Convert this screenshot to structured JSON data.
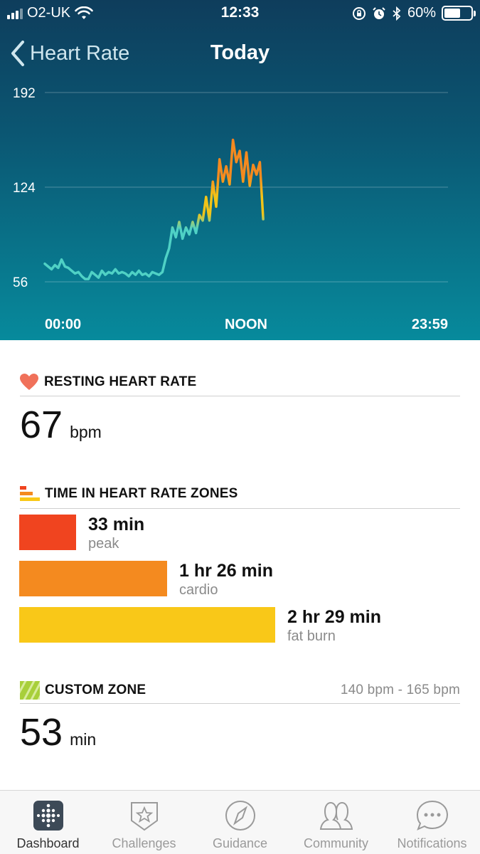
{
  "status_bar": {
    "carrier": "O2-UK",
    "time": "12:33",
    "battery": "60%",
    "battery_level": 0.6
  },
  "nav": {
    "back_label": "Heart Rate",
    "title": "Today"
  },
  "chart_data": {
    "type": "line",
    "title": "",
    "xlabel": "",
    "ylabel": "",
    "x_tick_labels": [
      "00:00",
      "NOON",
      "23:59"
    ],
    "y_ticks": [
      192,
      124,
      56
    ],
    "ylim": [
      56,
      192
    ],
    "xlim": [
      0,
      24
    ],
    "grid": true,
    "series": [
      {
        "x": [
          0.0,
          0.2,
          0.4,
          0.6,
          0.8,
          1.0,
          1.2,
          1.4,
          1.6,
          1.8,
          2.0,
          2.2,
          2.4,
          2.6,
          2.8,
          3.0,
          3.2,
          3.4,
          3.6,
          3.8,
          4.0,
          4.2,
          4.4,
          4.6,
          4.8,
          5.0,
          5.2,
          5.4,
          5.6,
          5.8,
          6.0,
          6.2,
          6.4,
          6.6,
          6.8,
          7.0,
          7.2,
          7.4,
          7.6,
          7.8,
          8.0,
          8.2,
          8.4,
          8.6,
          8.8,
          9.0,
          9.2,
          9.4,
          9.6,
          9.8,
          10.0,
          10.2,
          10.4,
          10.6,
          10.8,
          11.0,
          11.2,
          11.4,
          11.6,
          11.8,
          12.0,
          12.2,
          12.4,
          12.6,
          12.8,
          13.0
        ],
        "values": [
          69,
          67,
          65,
          68,
          66,
          72,
          67,
          66,
          64,
          62,
          63,
          60,
          58,
          58,
          63,
          61,
          59,
          64,
          61,
          63,
          62,
          65,
          62,
          63,
          62,
          60,
          63,
          61,
          64,
          61,
          62,
          60,
          63,
          62,
          61,
          63,
          73,
          80,
          95,
          88,
          99,
          87,
          95,
          90,
          99,
          91,
          104,
          100,
          117,
          100,
          128,
          110,
          144,
          128,
          139,
          126,
          158,
          142,
          150,
          128,
          149,
          125,
          140,
          133,
          142,
          101
        ]
      }
    ],
    "zone_colors": {
      "below": "#4fd1c5",
      "fat_burn": "#f2c418",
      "cardio": "#f48a1f",
      "peak": "#f0441f"
    }
  },
  "resting": {
    "heading": "RESTING HEART RATE",
    "value": "67",
    "unit": "bpm"
  },
  "zones": {
    "heading": "TIME IN HEART RATE ZONES",
    "items": [
      {
        "value": "33 min",
        "label": "peak",
        "minutes": 33,
        "color": "#f0441f"
      },
      {
        "value": "1 hr 26 min",
        "label": "cardio",
        "minutes": 86,
        "color": "#f48a1f"
      },
      {
        "value": "2 hr 29 min",
        "label": "fat burn",
        "minutes": 149,
        "color": "#f9c818"
      }
    ]
  },
  "custom_zone": {
    "heading": "CUSTOM ZONE",
    "range": "140 bpm - 165 bpm",
    "value": "53",
    "unit": "min"
  },
  "tabs": [
    {
      "label": "Dashboard",
      "icon": "dashboard-icon",
      "active": true
    },
    {
      "label": "Challenges",
      "icon": "challenges-icon",
      "active": false
    },
    {
      "label": "Guidance",
      "icon": "guidance-icon",
      "active": false
    },
    {
      "label": "Community",
      "icon": "community-icon",
      "active": false
    },
    {
      "label": "Notifications",
      "icon": "notifications-icon",
      "active": false
    }
  ],
  "colors": {
    "header_top": "#0e3d5c",
    "header_bottom": "#078a9c",
    "heart": "#f0715a",
    "custom_zone": "#a8cf3a"
  }
}
